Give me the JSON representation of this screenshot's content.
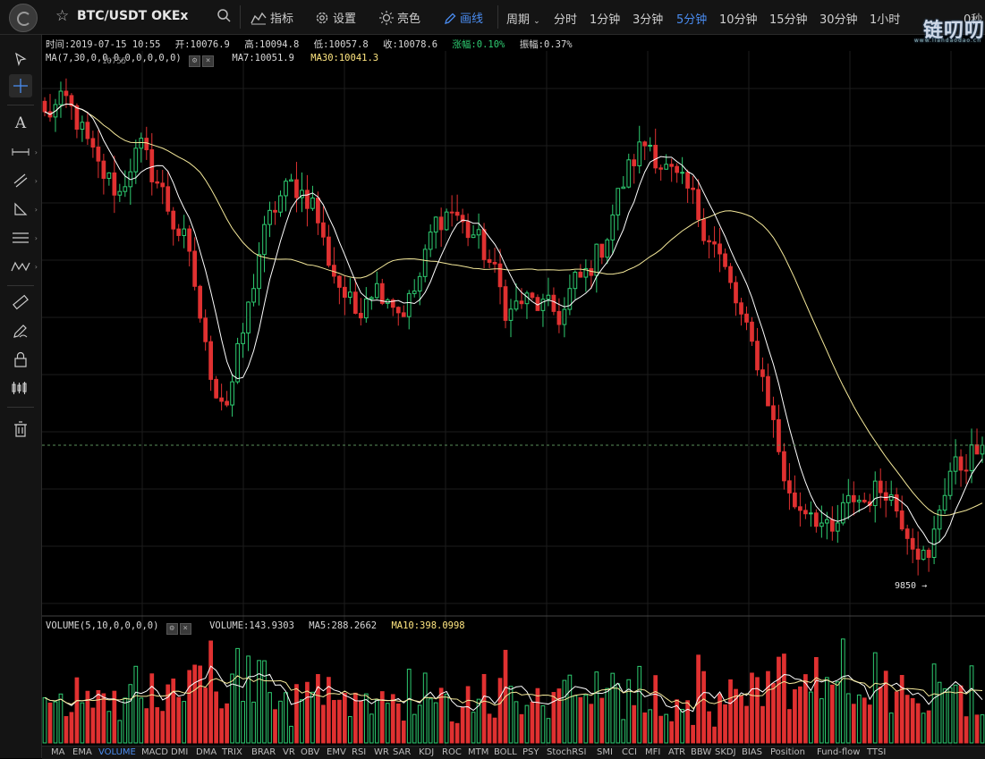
{
  "header": {
    "pair": "BTC/USDT OKEx",
    "indicators_label": "指标",
    "settings_label": "设置",
    "brightness_label": "亮色",
    "draw_label": "画线",
    "period_label": "周期",
    "periods": [
      "分时",
      "1分钟",
      "3分钟",
      "5分钟",
      "10分钟",
      "15分钟",
      "30分钟",
      "1小时"
    ],
    "active_period": "5分钟",
    "countdown": "0秒",
    "watermark": "链叨叨",
    "watermark_url": "www.liandaodao.cn"
  },
  "info": {
    "time": "时间:2019-07-15 10:55",
    "open": "开:10076.9",
    "high": "高:10094.8",
    "low": "低:10057.8",
    "close": "收:10078.6",
    "change": "涨幅:0.10%",
    "amplitude": "振幅:0.37%"
  },
  "ma": {
    "label": "MA(7,30,0,0,0,0,0,0,0,0)",
    "ma7": "MA7:10051.9",
    "ma30": "MA30:10041.3"
  },
  "volume": {
    "label": "VOLUME(5,10,0,0,0,0)",
    "volume": "VOLUME:143.9303",
    "ma5": "MA5:288.2662",
    "ma10": "MA10:398.0998"
  },
  "annotations": {
    "high_marker": "10755",
    "low_marker": "9850 →"
  },
  "colors": {
    "up": "#2ecc71",
    "down": "#e03131",
    "ma7": "#ffffff",
    "ma30": "#f5e99a",
    "accent": "#4a8cf0"
  },
  "bottom_tabs": [
    "MA",
    "EMA",
    "VOLUME",
    "MACD",
    "DMI",
    "DMA",
    "TRIX",
    "BRAR",
    "VR",
    "OBV",
    "EMV",
    "RSI",
    "WR",
    "SAR",
    "KDJ",
    "ROC",
    "MTM",
    "BOLL",
    "PSY",
    "StochRSI",
    "SMI",
    "CCI",
    "MFI",
    "ATR",
    "BBW",
    "SKDJ",
    "BIAS",
    "Position",
    "Fund-flow",
    "TTSI"
  ],
  "active_tab": "VOLUME",
  "tools": [
    "cursor-arrow",
    "crosshair",
    "text",
    "horizontal-ray",
    "parallel-lines",
    "triangle",
    "fib-lines",
    "wave",
    "ruler",
    "pencil",
    "lock",
    "candles",
    "trash"
  ],
  "chart_data": {
    "type": "candlestick",
    "interval": "5分钟",
    "close_path": [
      10710,
      10725,
      10740,
      10700,
      10655,
      10610,
      10585,
      10560,
      10620,
      10650,
      10600,
      10560,
      10500,
      10470,
      10380,
      10250,
      10180,
      10160,
      10260,
      10350,
      10460,
      10520,
      10560,
      10580,
      10560,
      10540,
      10455,
      10400,
      10360,
      10330,
      10380,
      10380,
      10365,
      10330,
      10360,
      10410,
      10500,
      10520,
      10530,
      10490,
      10480,
      10440,
      10395,
      10325,
      10355,
      10355,
      10345,
      10340,
      10320,
      10390,
      10400,
      10435,
      10470,
      10545,
      10600,
      10640,
      10665,
      10620,
      10600,
      10580,
      10560,
      10500,
      10470,
      10420,
      10360,
      10300,
      10250,
      10180,
      10080,
      9980,
      9960,
      9960,
      9930,
      9900,
      9950,
      9980,
      9970,
      9990,
      10000,
      9960,
      9920,
      9880,
      9850,
      9960,
      10030,
      10040,
      10060,
      10078
    ],
    "low_price": "9850",
    "y_range": [
      9820,
      10800
    ],
    "ma_periods": [
      7,
      30
    ],
    "volume_ma_periods": [
      5,
      10
    ]
  }
}
